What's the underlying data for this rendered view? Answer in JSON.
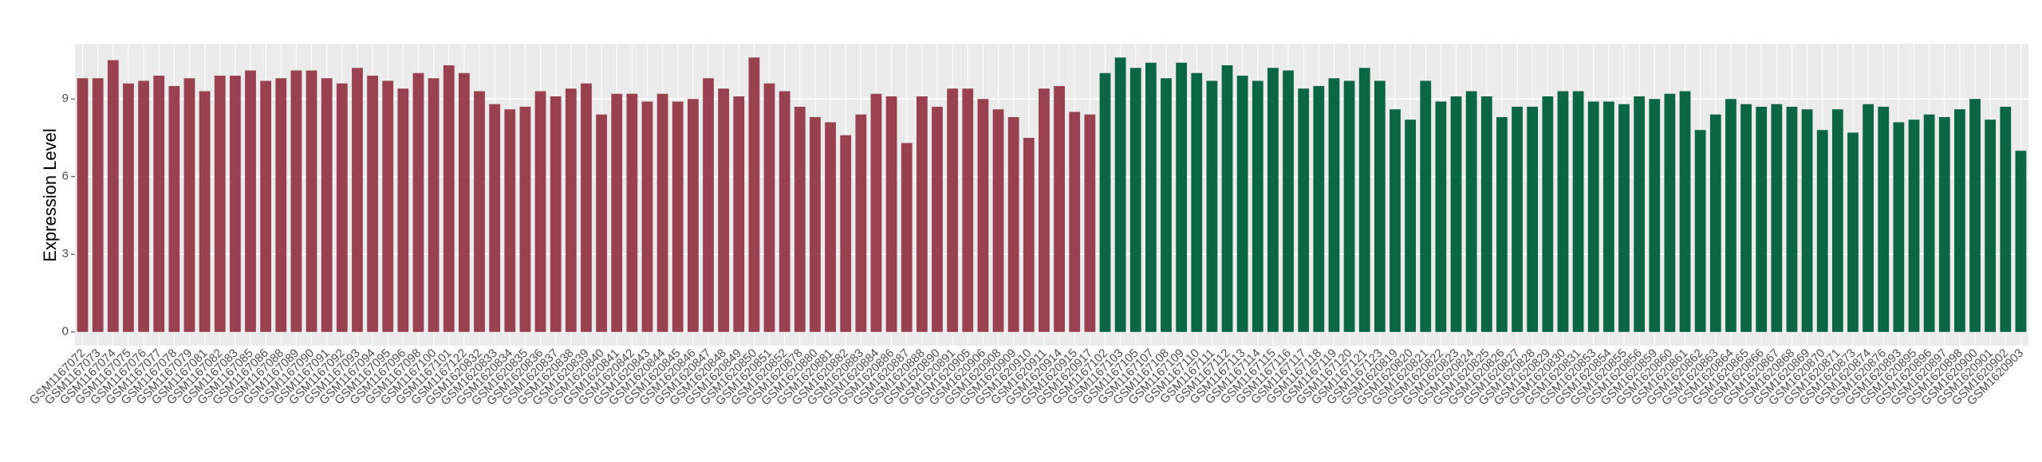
{
  "chart_data": {
    "type": "bar",
    "y_label": "Expression Level",
    "ylim": [
      -0.53,
      11.13
    ],
    "yticks": [
      0,
      3,
      6,
      9
    ],
    "grid": true,
    "series": [
      {
        "color": "#9a4150",
        "categories": [
          "GSM1167072",
          "GSM1167073",
          "GSM1167074",
          "GSM1167075",
          "GSM1167076",
          "GSM1167077",
          "GSM1167078",
          "GSM1167079",
          "GSM1167081",
          "GSM1167082",
          "GSM1167083",
          "GSM1167085",
          "GSM1167086",
          "GSM1167088",
          "GSM1167089",
          "GSM1167090",
          "GSM1167091",
          "GSM1167092",
          "GSM1167093",
          "GSM1167094",
          "GSM1167095",
          "GSM1167096",
          "GSM1167098",
          "GSM1167100",
          "GSM1167101",
          "GSM1167122",
          "GSM1620832",
          "GSM1620833",
          "GSM1620834",
          "GSM1620835",
          "GSM1620836",
          "GSM1620837",
          "GSM1620838",
          "GSM1620839",
          "GSM1620840",
          "GSM1620841",
          "GSM1620842",
          "GSM1620843",
          "GSM1620844",
          "GSM1620845",
          "GSM1620846",
          "GSM1620847",
          "GSM1620848",
          "GSM1620849",
          "GSM1620850",
          "GSM1620851",
          "GSM1620852",
          "GSM1620878",
          "GSM1620880",
          "GSM1620881",
          "GSM1620882",
          "GSM1620883",
          "GSM1620884",
          "GSM1620886",
          "GSM1620887",
          "GSM1620888",
          "GSM1620890",
          "GSM1620891",
          "GSM1620905",
          "GSM1620906",
          "GSM1620908",
          "GSM1620909",
          "GSM1620910",
          "GSM1620911",
          "GSM1620914",
          "GSM1620915",
          "GSM1620917"
        ],
        "values": [
          9.8,
          9.8,
          10.5,
          9.6,
          9.7,
          9.9,
          9.5,
          9.8,
          9.3,
          9.9,
          9.9,
          10.1,
          9.7,
          9.8,
          10.1,
          10.1,
          9.8,
          9.6,
          10.2,
          9.9,
          9.7,
          9.4,
          10.0,
          9.8,
          10.3,
          10.0,
          9.3,
          8.8,
          8.6,
          8.7,
          9.3,
          9.1,
          9.4,
          9.6,
          8.4,
          9.2,
          9.2,
          8.9,
          9.2,
          8.9,
          9.0,
          9.8,
          9.4,
          9.1,
          10.6,
          9.6,
          9.3,
          8.7,
          8.3,
          8.1,
          7.6,
          8.4,
          9.2,
          9.1,
          7.3,
          9.1,
          8.7,
          9.4,
          9.4,
          9.0,
          8.6,
          8.3,
          7.5,
          9.4,
          9.5,
          8.5,
          8.4
        ]
      },
      {
        "color": "#0a6645",
        "categories": [
          "GSM1167102",
          "GSM1167103",
          "GSM1167105",
          "GSM1167107",
          "GSM1167108",
          "GSM1167109",
          "GSM1167110",
          "GSM1167111",
          "GSM1167112",
          "GSM1167113",
          "GSM1167114",
          "GSM1167115",
          "GSM1167116",
          "GSM1167117",
          "GSM1167118",
          "GSM1167119",
          "GSM1167120",
          "GSM1167121",
          "GSM1167123",
          "GSM1620819",
          "GSM1620820",
          "GSM1620821",
          "GSM1620822",
          "GSM1620823",
          "GSM1620824",
          "GSM1620825",
          "GSM1620826",
          "GSM1620827",
          "GSM1620828",
          "GSM1620829",
          "GSM1620830",
          "GSM1620831",
          "GSM1620853",
          "GSM1620854",
          "GSM1620855",
          "GSM1620856",
          "GSM1620859",
          "GSM1620860",
          "GSM1620861",
          "GSM1620862",
          "GSM1620863",
          "GSM1620864",
          "GSM1620865",
          "GSM1620866",
          "GSM1620867",
          "GSM1620868",
          "GSM1620869",
          "GSM1620870",
          "GSM1620871",
          "GSM1620873",
          "GSM1620874",
          "GSM1620876",
          "GSM1620893",
          "GSM1620895",
          "GSM1620896",
          "GSM1620897",
          "GSM1620898",
          "GSM1620900",
          "GSM1620901",
          "GSM1620902",
          "GSM1620903"
        ],
        "values": [
          10.0,
          10.6,
          10.2,
          10.4,
          9.8,
          10.4,
          10.0,
          9.7,
          10.3,
          9.9,
          9.7,
          10.2,
          10.1,
          9.4,
          9.5,
          9.8,
          9.7,
          10.2,
          9.7,
          8.6,
          8.2,
          9.7,
          8.9,
          9.1,
          9.3,
          9.1,
          8.3,
          8.7,
          8.7,
          9.1,
          9.3,
          9.3,
          8.9,
          8.9,
          8.8,
          9.1,
          9.0,
          9.2,
          9.3,
          7.8,
          8.4,
          9.0,
          8.8,
          8.7,
          8.8,
          8.7,
          8.6,
          7.8,
          8.6,
          7.7,
          8.8,
          8.7,
          8.1,
          8.2,
          8.4,
          8.3,
          8.6,
          9.0,
          8.2,
          8.7,
          7.0
        ]
      }
    ]
  }
}
